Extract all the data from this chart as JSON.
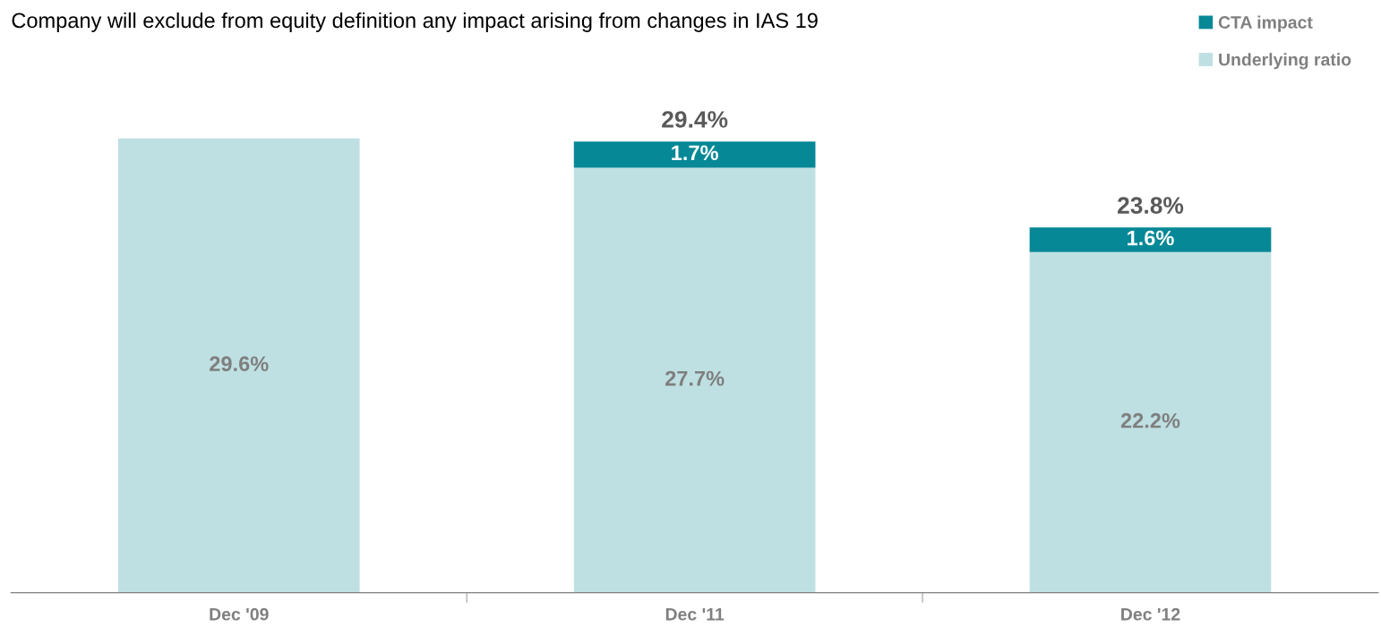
{
  "chart_data": {
    "type": "bar",
    "stacked": true,
    "title": "Company will exclude from equity definition any impact arising from changes in IAS 19",
    "categories": [
      "Dec '09",
      "Dec '11",
      "Dec '12"
    ],
    "series": [
      {
        "name": "Underlying ratio",
        "color": "#bfe0e2",
        "values": [
          29.6,
          27.7,
          22.2
        ],
        "value_labels": [
          "29.6%",
          "27.7%",
          "22.2%"
        ]
      },
      {
        "name": "CTA impact",
        "color": "#068896",
        "values": [
          null,
          1.7,
          1.6
        ],
        "value_labels": [
          null,
          "1.7%",
          "1.6%"
        ]
      }
    ],
    "totals": [
      null,
      "29.4%",
      "23.8%"
    ],
    "legend": "top right",
    "grid": false,
    "tick_labels": "x"
  }
}
